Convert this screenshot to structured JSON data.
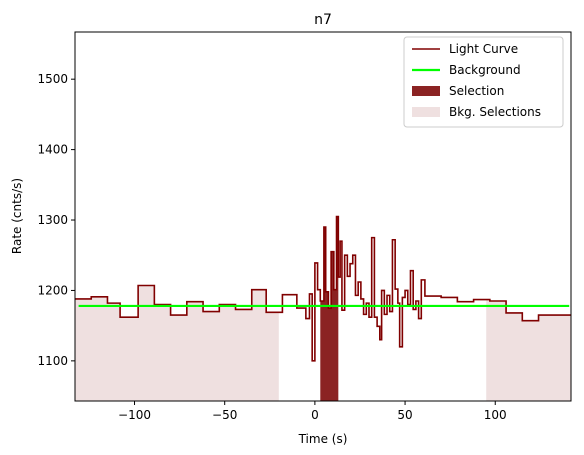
{
  "chart_data": {
    "type": "line",
    "title": "n7",
    "xlabel": "Time (s)",
    "ylabel": "Rate (cnts/s)",
    "xlim": [
      -133,
      142
    ],
    "ylim": [
      1043,
      1567
    ],
    "xticks": [
      -100,
      -50,
      0,
      50,
      100
    ],
    "yticks": [
      1100,
      1200,
      1300,
      1400,
      1500
    ],
    "xtick_labels": [
      "−100",
      "−50",
      "0",
      "50",
      "100"
    ],
    "ytick_labels": [
      "1100",
      "1200",
      "1300",
      "1400",
      "1500"
    ],
    "grid": false,
    "legend_position": "top-right",
    "colors": {
      "light_curve": "#800000",
      "background": "#00ff00",
      "selection": "#8b2323",
      "bkg_selection": "#efe0e0"
    },
    "legend": [
      {
        "label": "Light Curve",
        "kind": "line",
        "color": "#800000"
      },
      {
        "label": "Background",
        "kind": "line",
        "color": "#00ff00"
      },
      {
        "label": "Selection",
        "kind": "patch",
        "color": "#8b2323"
      },
      {
        "label": "Bkg. Selections",
        "kind": "patch",
        "color": "#efe0e0"
      }
    ],
    "background_level": 1178,
    "selection": [
      3,
      13
    ],
    "bkg_selections": [
      [
        -133,
        -20
      ],
      [
        95,
        142
      ]
    ],
    "light_curve": {
      "edges": [
        -133,
        -124,
        -115,
        -108,
        -98,
        -89,
        -80,
        -71,
        -62,
        -53,
        -44,
        -35,
        -27,
        -18,
        -10,
        -5,
        -3,
        -1.5,
        0,
        1.5,
        3,
        5,
        6,
        7.5,
        9,
        10.5,
        12,
        13,
        14,
        15,
        16.5,
        18,
        19.5,
        21,
        22.5,
        24,
        25.5,
        27,
        28.5,
        30,
        31.5,
        33,
        34.5,
        36,
        37,
        38.5,
        40,
        41.5,
        43,
        44.5,
        46,
        47,
        48.5,
        50,
        51.5,
        53,
        54.5,
        56,
        57.5,
        59,
        61,
        70,
        79,
        88,
        97,
        106,
        115,
        124,
        133,
        142
      ],
      "values": [
        1188,
        1191,
        1182,
        1162,
        1207,
        1180,
        1165,
        1184,
        1170,
        1180,
        1173,
        1201,
        1169,
        1194,
        1175,
        1160,
        1195,
        1100,
        1239,
        1201,
        1185,
        1290,
        1198,
        1175,
        1255,
        1201,
        1305,
        1219,
        1270,
        1172,
        1250,
        1220,
        1238,
        1250,
        1193,
        1212,
        1188,
        1166,
        1182,
        1162,
        1275,
        1162,
        1149,
        1130,
        1200,
        1166,
        1193,
        1170,
        1272,
        1202,
        1182,
        1120,
        1190,
        1200,
        1180,
        1228,
        1173,
        1185,
        1160,
        1215,
        1192,
        1190,
        1184,
        1187,
        1185,
        1168,
        1157,
        1165,
        1165
      ]
    }
  }
}
